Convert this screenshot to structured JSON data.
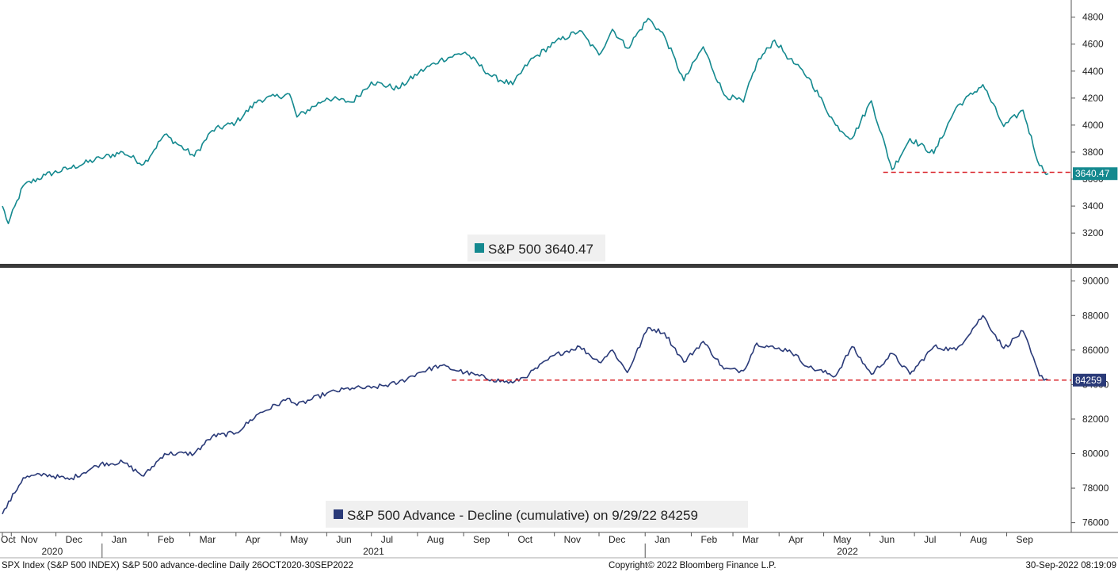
{
  "footer": {
    "left": "SPX Index (S&P 500 INDEX) S&P 500 advance-decline  Daily 26OCT2020-30SEP2022",
    "center": "Copyright© 2022 Bloomberg Finance L.P.",
    "right": "30-Sep-2022 08:19:09"
  },
  "x_axis": {
    "months": [
      "Oct",
      "Nov",
      "Dec",
      "Jan",
      "Feb",
      "Mar",
      "Apr",
      "May",
      "Jun",
      "Jul",
      "Aug",
      "Sep",
      "Oct",
      "Nov",
      "Dec",
      "Jan",
      "Feb",
      "Mar",
      "Apr",
      "May",
      "Jun",
      "Jul",
      "Aug",
      "Sep"
    ],
    "years": [
      "2020",
      "2021",
      "2022"
    ]
  },
  "colors": {
    "spx": "#14898f",
    "ad": "#2a3a78",
    "support": "#d9252b"
  },
  "chart_data": [
    {
      "type": "line",
      "title": "",
      "legend": {
        "label": "S&P 500 3640.47",
        "placement": "bottom-center"
      },
      "last_value_label": "3640.47",
      "yticks": [
        3200,
        3400,
        3600,
        3800,
        4000,
        4200,
        4400,
        4600,
        4800
      ],
      "ylim": [
        3060,
        4880
      ],
      "xlim": [
        "2020-10-26",
        "2022-09-30"
      ],
      "support_level": {
        "value": 3650,
        "from": "2022-06-10",
        "to": "2022-09-30"
      },
      "series": [
        {
          "x": [
            "2020-10-26",
            "2020-10-30",
            "2020-11-09",
            "2020-11-24",
            "2020-12-10",
            "2020-12-31",
            "2021-01-15",
            "2021-01-29",
            "2021-02-12",
            "2021-03-04",
            "2021-03-16",
            "2021-04-01",
            "2021-04-16",
            "2021-05-07",
            "2021-05-12",
            "2021-06-01",
            "2021-06-18",
            "2021-07-01",
            "2021-07-19",
            "2021-08-02",
            "2021-08-16",
            "2021-09-02",
            "2021-09-20",
            "2021-10-04",
            "2021-10-15",
            "2021-11-01",
            "2021-11-18",
            "2021-12-01",
            "2021-12-10",
            "2021-12-20",
            "2022-01-03",
            "2022-01-14",
            "2022-01-27",
            "2022-02-09",
            "2022-02-23",
            "2022-03-08",
            "2022-03-17",
            "2022-03-29",
            "2022-04-08",
            "2022-04-21",
            "2022-05-09",
            "2022-05-20",
            "2022-06-02",
            "2022-06-16",
            "2022-06-28",
            "2022-07-14",
            "2022-07-29",
            "2022-08-16",
            "2022-08-30",
            "2022-09-12",
            "2022-09-23",
            "2022-09-29"
          ],
          "y": [
            3400,
            3270,
            3550,
            3630,
            3680,
            3756,
            3800,
            3710,
            3930,
            3770,
            3960,
            4020,
            4185,
            4230,
            4060,
            4200,
            4170,
            4320,
            4270,
            4390,
            4480,
            4540,
            4360,
            4300,
            4470,
            4610,
            4700,
            4520,
            4710,
            4570,
            4790,
            4660,
            4330,
            4580,
            4225,
            4170,
            4460,
            4630,
            4490,
            4350,
            4000,
            3900,
            4180,
            3670,
            3900,
            3790,
            4130,
            4300,
            3990,
            4110,
            3700,
            3640
          ]
        }
      ]
    },
    {
      "type": "line",
      "title": "",
      "legend": {
        "label": "S&P 500 Advance - Decline (cumulative) on 9/29/22 84259",
        "placement": "bottom-center"
      },
      "last_value_label": "84259",
      "yticks": [
        76000,
        78000,
        80000,
        82000,
        84000,
        86000,
        88000,
        90000
      ],
      "ylim": [
        75800,
        90400
      ],
      "xlim": [
        "2020-10-26",
        "2022-09-30"
      ],
      "support_level": {
        "value": 84259,
        "from": "2021-08-24",
        "to": "2022-09-30"
      },
      "series": [
        {
          "x": [
            "2020-10-26",
            "2020-11-09",
            "2020-11-24",
            "2020-12-10",
            "2020-12-31",
            "2021-01-15",
            "2021-01-29",
            "2021-02-12",
            "2021-03-04",
            "2021-03-16",
            "2021-04-01",
            "2021-04-16",
            "2021-05-07",
            "2021-05-12",
            "2021-06-01",
            "2021-06-18",
            "2021-07-01",
            "2021-07-19",
            "2021-08-02",
            "2021-08-16",
            "2021-09-02",
            "2021-09-20",
            "2021-10-04",
            "2021-10-15",
            "2021-11-01",
            "2021-11-18",
            "2021-12-01",
            "2021-12-10",
            "2021-12-20",
            "2022-01-03",
            "2022-01-14",
            "2022-01-27",
            "2022-02-09",
            "2022-02-23",
            "2022-03-08",
            "2022-03-17",
            "2022-03-29",
            "2022-04-08",
            "2022-04-21",
            "2022-05-09",
            "2022-05-20",
            "2022-06-02",
            "2022-06-16",
            "2022-06-28",
            "2022-07-14",
            "2022-07-29",
            "2022-08-16",
            "2022-08-30",
            "2022-09-12",
            "2022-09-23",
            "2022-09-29"
          ],
          "y": [
            76500,
            78600,
            78800,
            78500,
            79400,
            79500,
            78700,
            80000,
            80000,
            81000,
            81200,
            82300,
            83200,
            82800,
            83500,
            83800,
            83800,
            84100,
            84700,
            85100,
            84700,
            84300,
            84100,
            84600,
            85700,
            86200,
            85300,
            86000,
            84700,
            87300,
            87000,
            85300,
            86500,
            84900,
            84800,
            86400,
            86100,
            86000,
            85000,
            84500,
            86200,
            84600,
            85800,
            84600,
            86200,
            86000,
            88000,
            86100,
            87100,
            84500,
            84259
          ]
        }
      ]
    }
  ]
}
